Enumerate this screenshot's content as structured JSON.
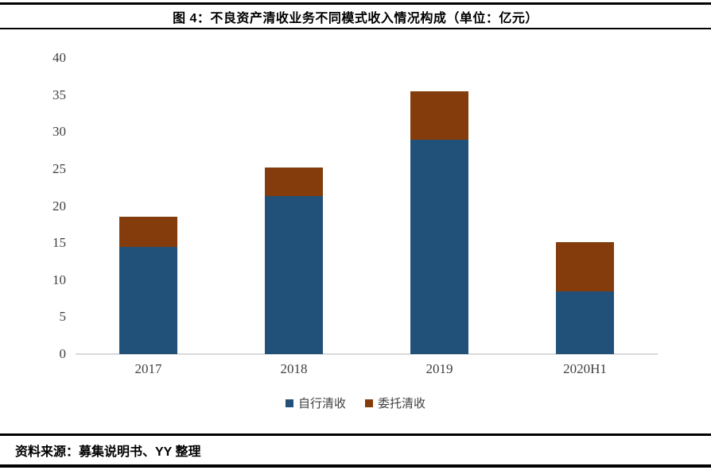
{
  "header": {
    "title": "图 4：不良资产清收业务不同模式收入情况构成（单位：亿元）"
  },
  "footer": {
    "source": "资料来源：募集说明书、YY 整理"
  },
  "colors": {
    "self_collection_blue": "#215078",
    "entrusted_collection_brown": "#843C0C",
    "axis_line": "#D9D9D9",
    "tick_text": "#3F3F3F"
  },
  "chart_data": {
    "type": "bar",
    "stacked": true,
    "title": "图 4：不良资产清收业务不同模式收入情况构成（单位：亿元）",
    "categories": [
      "2017",
      "2018",
      "2019",
      "2020H1"
    ],
    "series": [
      {
        "name": "自行清收",
        "color": "#215078",
        "values": [
          14.5,
          21.3,
          29.0,
          8.5
        ]
      },
      {
        "name": "委托清收",
        "color": "#843C0C",
        "values": [
          4.0,
          3.9,
          6.5,
          6.6
        ]
      }
    ],
    "totals": [
      18.5,
      25.2,
      35.5,
      15.1
    ],
    "xlabel": "",
    "ylabel": "",
    "unit": "亿元",
    "ylim": [
      0,
      40
    ],
    "ytick_step": 5,
    "grid": false,
    "legend_position": "bottom"
  }
}
